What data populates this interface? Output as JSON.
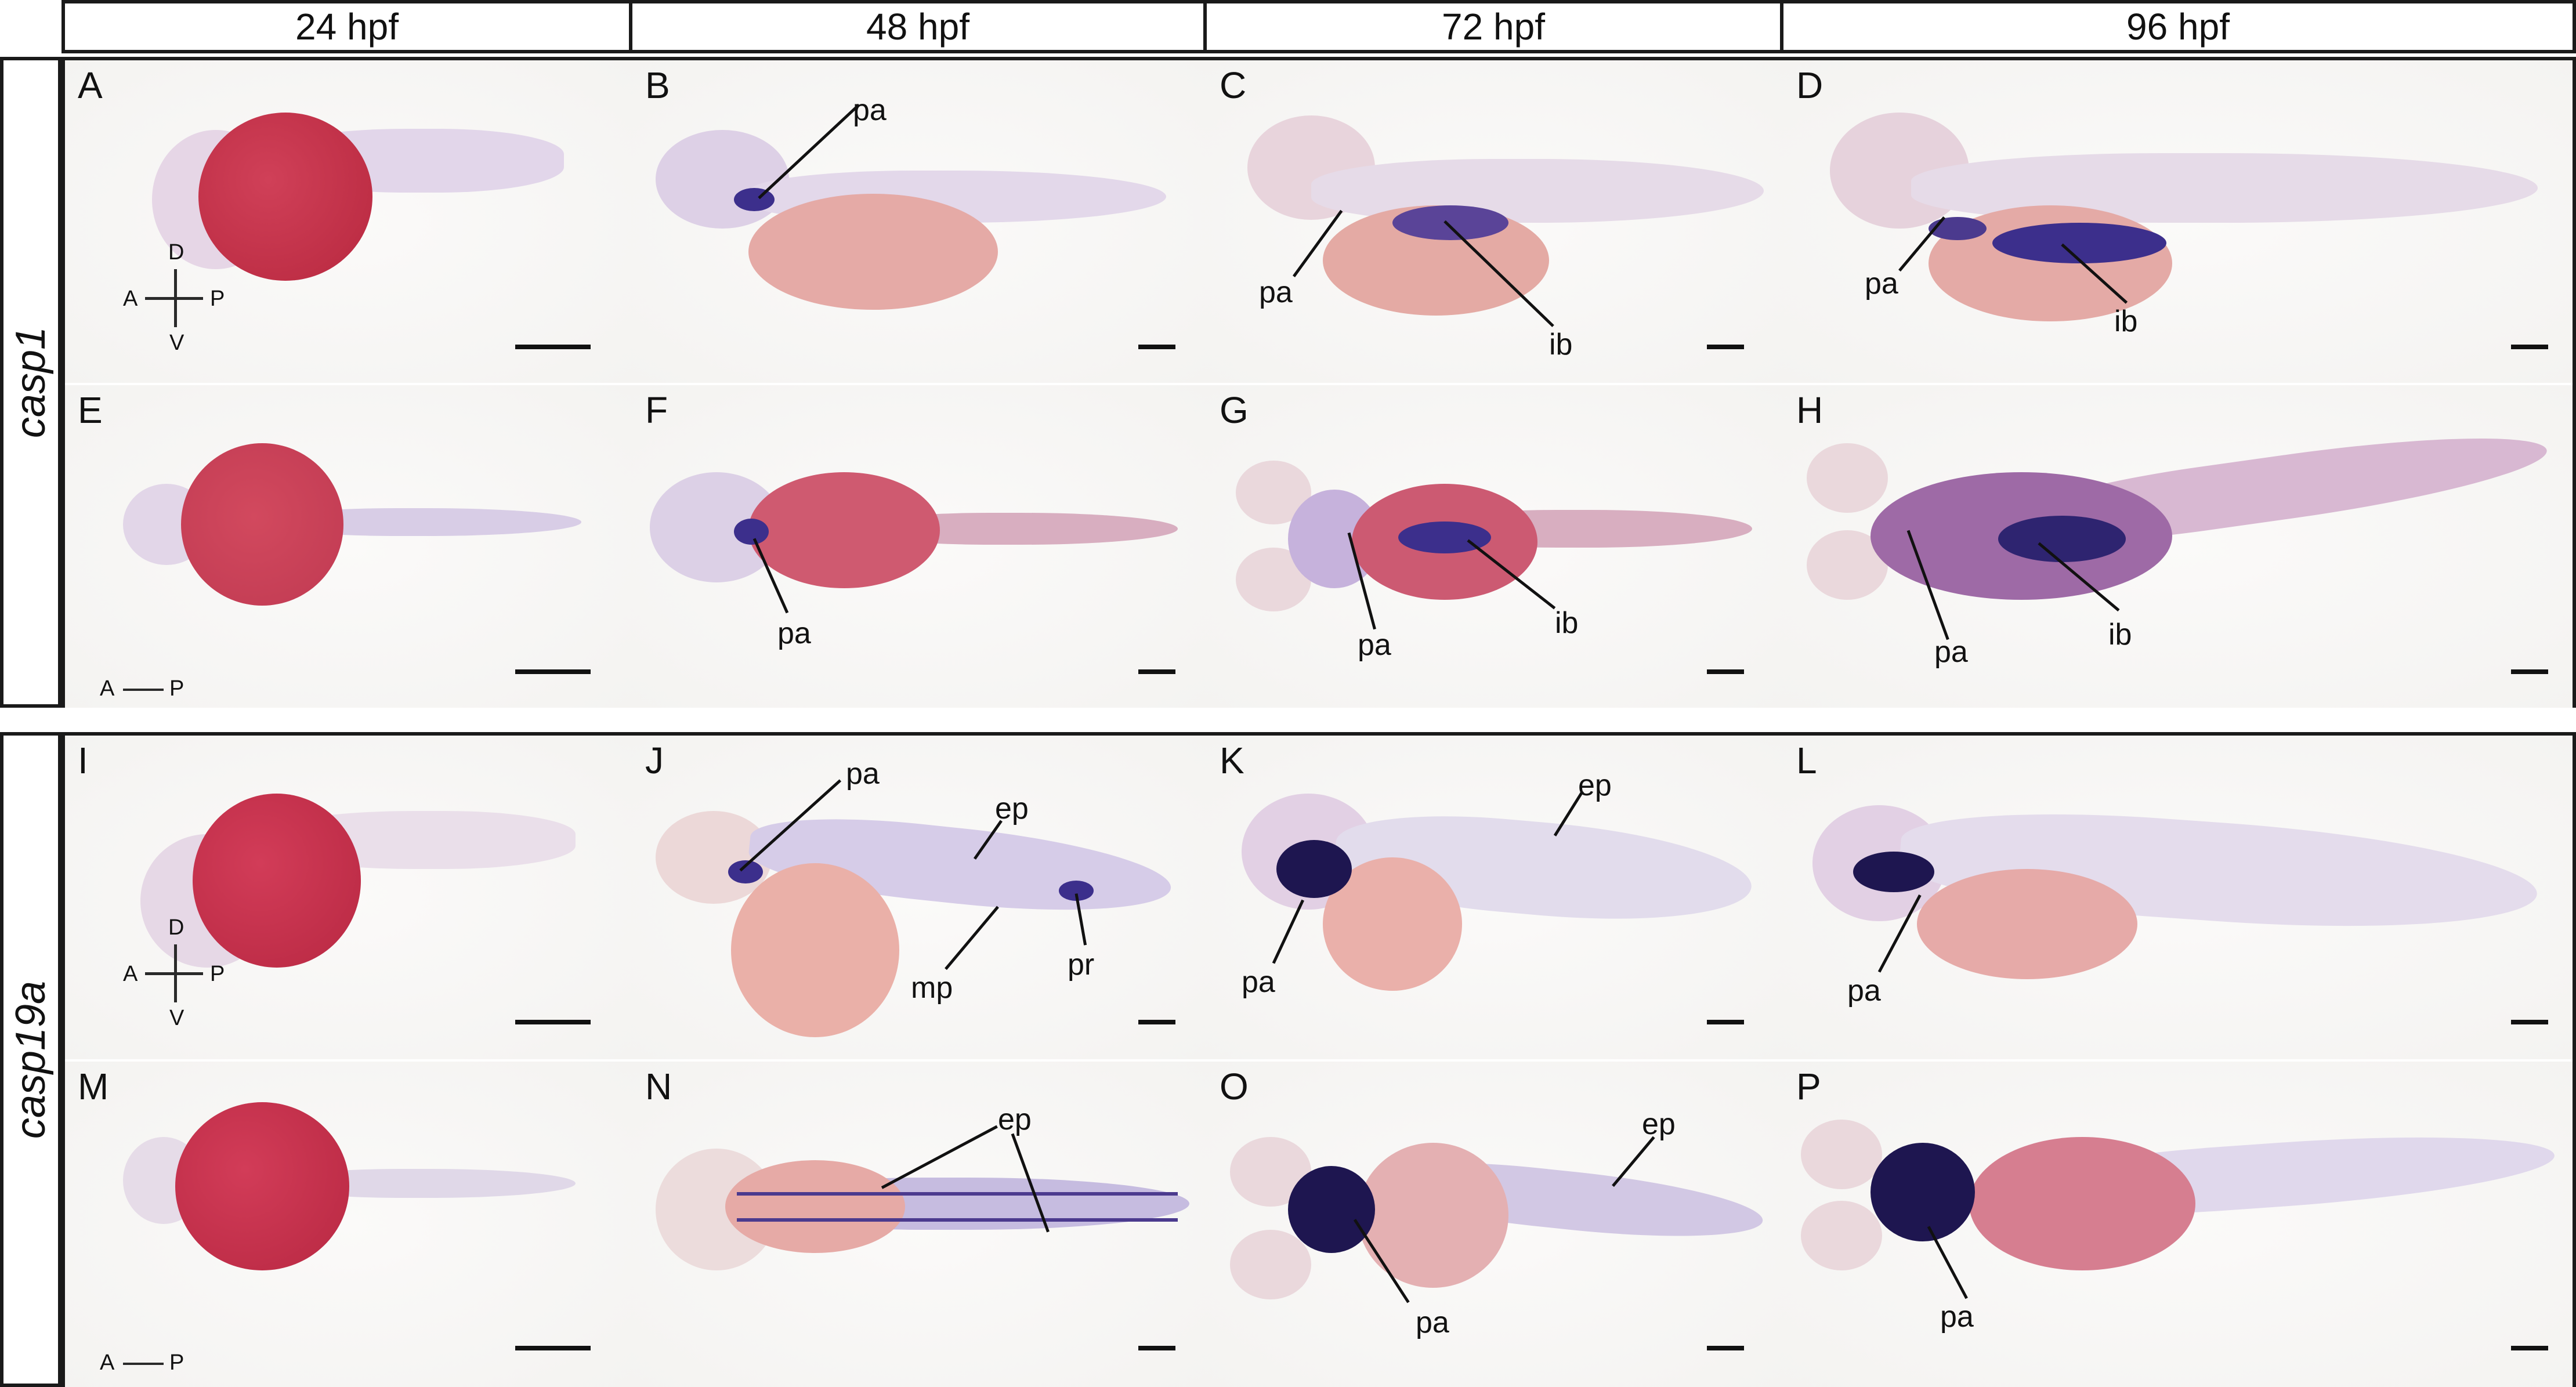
{
  "columns": [
    "24 hpf",
    "48 hpf",
    "72 hpf",
    "96 hpf"
  ],
  "rows": {
    "top": "casp1",
    "bottom": "casp19a"
  },
  "panels": {
    "A": "A",
    "B": "B",
    "C": "C",
    "D": "D",
    "E": "E",
    "F": "F",
    "G": "G",
    "H": "H",
    "I": "I",
    "J": "J",
    "K": "K",
    "L": "L",
    "M": "M",
    "N": "N",
    "O": "O",
    "P": "P"
  },
  "labels": {
    "pa": "pa",
    "ib": "ib",
    "ep": "ep",
    "mp": "mp",
    "pr": "pr"
  },
  "axes": {
    "d": "D",
    "v": "V",
    "a": "A",
    "p": "P"
  },
  "colors": {
    "stain_purple": "#3c2f8c",
    "yolk_red": "#c83a52",
    "frame": "#1a1a1a"
  }
}
